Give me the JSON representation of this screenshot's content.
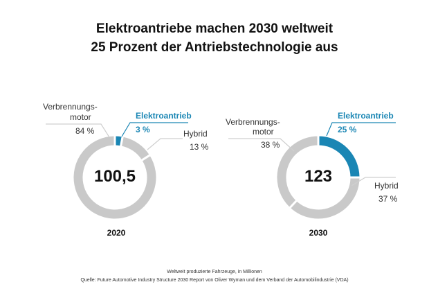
{
  "title": {
    "line1": "Elektroantriebe machen 2030 weltweit",
    "line2": "25 Prozent der Antriebstechnologie aus"
  },
  "footer": {
    "note": "Weltweit produzierte Fahrzeuge,  in Millionen",
    "source": "Quelle: Future Automotive  Industry Structure 2030 Report von Oliver Wyman und dem Verband der Automobilindustrie (VDA)"
  },
  "colors": {
    "electric": "#1a86b4",
    "combustion": "#c9c9c9",
    "hybrid": "#c9c9c9",
    "leader_lines": "#cfcfcf"
  },
  "chart_data": [
    {
      "type": "pie",
      "donut": true,
      "year_label": "2020",
      "center_label": "100,5",
      "slices": [
        {
          "name": "Elektroantrieb",
          "value": 3,
          "value_label": "3 %",
          "highlight": true
        },
        {
          "name": "Hybrid",
          "value": 13,
          "value_label": "13 %",
          "highlight": false
        },
        {
          "name": "Verbrennungsmotor",
          "name_lines": [
            "Verbrennungs-",
            "motor"
          ],
          "value": 84,
          "value_label": "84 %",
          "highlight": false
        }
      ]
    },
    {
      "type": "pie",
      "donut": true,
      "year_label": "2030",
      "center_label": "123",
      "slices": [
        {
          "name": "Elektroantrieb",
          "value": 25,
          "value_label": "25 %",
          "highlight": true
        },
        {
          "name": "Hybrid",
          "value": 37,
          "value_label": "37 %",
          "highlight": false
        },
        {
          "name": "Verbrennungsmotor",
          "name_lines": [
            "Verbrennungs-",
            "motor"
          ],
          "value": 38,
          "value_label": "38 %",
          "highlight": false
        }
      ]
    }
  ]
}
